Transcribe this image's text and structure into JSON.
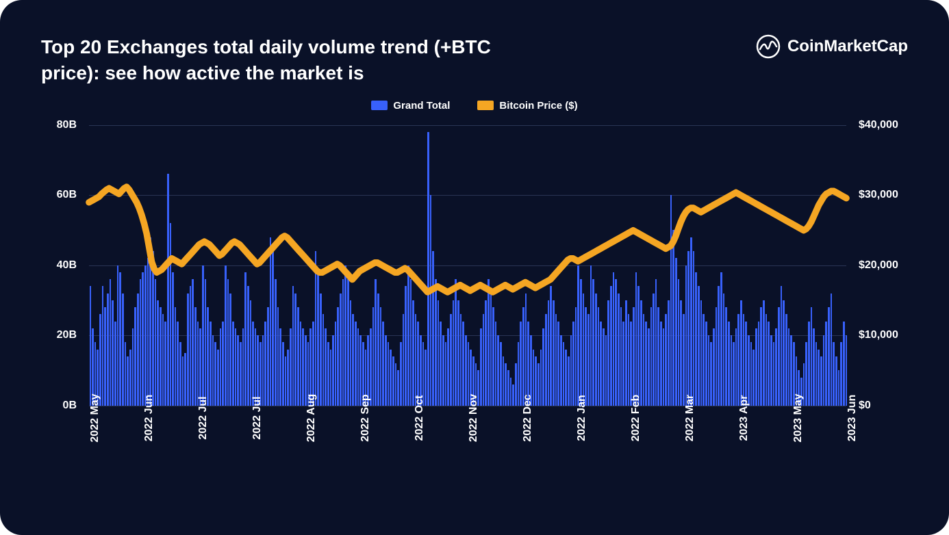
{
  "title": "Top 20 Exchanges total daily volume trend (+BTC price): see how active the market is",
  "brand": "CoinMarketCap",
  "legend": {
    "bar_label": "Grand Total",
    "line_label": "Bitcoin Price ($)"
  },
  "chart": {
    "type": "combo-bar-line",
    "background_color": "#0a1128",
    "grid_color": "#2a3555",
    "text_color": "#ffffff",
    "bar_color": "#3861fb",
    "line_color": "#f5a623",
    "line_width": 4,
    "y_left": {
      "min": 0,
      "max": 80,
      "ticks": [
        0,
        20,
        40,
        60,
        80
      ],
      "labels": [
        "0B",
        "20B",
        "40B",
        "60B",
        "80B"
      ]
    },
    "y_right": {
      "min": 0,
      "max": 40000,
      "ticks": [
        0,
        10000,
        20000,
        30000,
        40000
      ],
      "labels": [
        "$0",
        "$10,000",
        "$20,000",
        "$30,000",
        "$40,000"
      ]
    },
    "x_labels": [
      "2022 May",
      "2022 Jun",
      "2022 Jul",
      "2022 Jul",
      "2022 Aug",
      "2022 Sep",
      "2022 Oct",
      "2022 Nov",
      "2022 Dec",
      "2022 Jan",
      "2022 Feb",
      "2022 Mar",
      "2023 Apr",
      "2023 May",
      "2023 Jun"
    ],
    "x_positions_pct": [
      0,
      7.14,
      14.28,
      21.42,
      28.56,
      35.7,
      42.84,
      50,
      57.14,
      64.28,
      71.42,
      78.56,
      85.7,
      92.84,
      100
    ],
    "bars_values": [
      34,
      22,
      18,
      16,
      26,
      34,
      28,
      32,
      36,
      30,
      24,
      40,
      38,
      32,
      18,
      14,
      16,
      22,
      28,
      32,
      36,
      38,
      40,
      42,
      48,
      44,
      36,
      30,
      28,
      26,
      24,
      66,
      52,
      38,
      28,
      24,
      18,
      14,
      15,
      32,
      34,
      36,
      28,
      24,
      22,
      40,
      36,
      28,
      24,
      20,
      18,
      16,
      22,
      24,
      40,
      36,
      32,
      24,
      22,
      20,
      18,
      22,
      38,
      34,
      30,
      24,
      22,
      20,
      18,
      20,
      24,
      28,
      48,
      44,
      36,
      28,
      22,
      18,
      14,
      16,
      22,
      34,
      32,
      28,
      24,
      22,
      20,
      18,
      22,
      24,
      44,
      38,
      32,
      26,
      22,
      18,
      16,
      20,
      24,
      28,
      32,
      36,
      40,
      36,
      30,
      26,
      24,
      22,
      20,
      18,
      16,
      20,
      22,
      28,
      36,
      32,
      28,
      24,
      20,
      18,
      16,
      14,
      12,
      10,
      18,
      26,
      34,
      40,
      36,
      30,
      26,
      24,
      20,
      18,
      16,
      78,
      60,
      44,
      36,
      30,
      24,
      20,
      18,
      22,
      26,
      30,
      36,
      30,
      26,
      24,
      20,
      18,
      16,
      14,
      12,
      10,
      22,
      26,
      30,
      36,
      32,
      28,
      24,
      20,
      18,
      14,
      12,
      10,
      8,
      6,
      12,
      18,
      24,
      28,
      32,
      24,
      20,
      16,
      14,
      12,
      16,
      22,
      26,
      30,
      34,
      30,
      26,
      24,
      20,
      18,
      16,
      14,
      20,
      24,
      28,
      40,
      36,
      32,
      28,
      26,
      40,
      36,
      32,
      28,
      24,
      22,
      20,
      30,
      34,
      38,
      36,
      32,
      28,
      24,
      30,
      26,
      24,
      28,
      38,
      34,
      30,
      26,
      24,
      22,
      28,
      32,
      36,
      28,
      24,
      22,
      26,
      30,
      60,
      50,
      42,
      36,
      30,
      26,
      40,
      44,
      48,
      44,
      38,
      34,
      30,
      26,
      24,
      20,
      18,
      22,
      28,
      34,
      38,
      32,
      28,
      24,
      20,
      18,
      22,
      26,
      30,
      26,
      24,
      20,
      18,
      16,
      22,
      24,
      28,
      30,
      26,
      24,
      20,
      18,
      22,
      28,
      34,
      30,
      26,
      22,
      20,
      18,
      14,
      10,
      8,
      12,
      18,
      24,
      28,
      22,
      18,
      16,
      14,
      20,
      24,
      28,
      32,
      18,
      14,
      10,
      18,
      24,
      20
    ],
    "line_values": [
      29000,
      29200,
      29400,
      29600,
      29800,
      30200,
      30500,
      30800,
      31000,
      30800,
      30600,
      30400,
      30200,
      30600,
      31000,
      31200,
      30800,
      30200,
      29600,
      29000,
      28200,
      27200,
      26000,
      24500,
      22500,
      20500,
      19500,
      19000,
      19200,
      19400,
      19800,
      20200,
      20600,
      21000,
      20800,
      20600,
      20400,
      20200,
      20600,
      21000,
      21400,
      21800,
      22200,
      22600,
      23000,
      23200,
      23400,
      23200,
      23000,
      22600,
      22200,
      21800,
      21400,
      21600,
      22000,
      22400,
      22800,
      23200,
      23400,
      23200,
      23000,
      22600,
      22200,
      21800,
      21400,
      21000,
      20600,
      20200,
      20400,
      20800,
      21200,
      21600,
      22000,
      22400,
      22800,
      23200,
      23600,
      24000,
      24200,
      24000,
      23600,
      23200,
      22800,
      22400,
      22000,
      21600,
      21200,
      20800,
      20400,
      20000,
      19600,
      19200,
      19000,
      19000,
      19200,
      19400,
      19600,
      19800,
      20000,
      20200,
      20000,
      19600,
      19200,
      18800,
      18400,
      18000,
      18400,
      18800,
      19200,
      19400,
      19600,
      19800,
      20000,
      20200,
      20400,
      20400,
      20200,
      20000,
      19800,
      19600,
      19400,
      19200,
      19000,
      19000,
      19200,
      19400,
      19600,
      19400,
      19000,
      18600,
      18200,
      17800,
      17400,
      17000,
      16600,
      16200,
      16400,
      16600,
      16800,
      17000,
      16800,
      16600,
      16400,
      16200,
      16400,
      16600,
      16800,
      17000,
      17200,
      17000,
      16800,
      16600,
      16400,
      16600,
      16800,
      17000,
      17200,
      17000,
      16800,
      16600,
      16400,
      16200,
      16400,
      16600,
      16800,
      17000,
      17200,
      17000,
      16800,
      16600,
      16800,
      17000,
      17200,
      17400,
      17600,
      17400,
      17200,
      17000,
      16800,
      17000,
      17200,
      17400,
      17600,
      17800,
      18000,
      18400,
      18800,
      19200,
      19600,
      20000,
      20400,
      20800,
      21000,
      21000,
      20800,
      20600,
      20800,
      21000,
      21200,
      21400,
      21600,
      21800,
      22000,
      22200,
      22400,
      22600,
      22800,
      23000,
      23200,
      23400,
      23600,
      23800,
      24000,
      24200,
      24400,
      24600,
      24800,
      25000,
      24800,
      24600,
      24400,
      24200,
      24000,
      23800,
      23600,
      23400,
      23200,
      23000,
      22800,
      22600,
      22400,
      22600,
      22800,
      23400,
      24200,
      25200,
      26200,
      27000,
      27600,
      28000,
      28200,
      28200,
      28000,
      27800,
      27600,
      27800,
      28000,
      28200,
      28400,
      28600,
      28800,
      29000,
      29200,
      29400,
      29600,
      29800,
      30000,
      30200,
      30400,
      30200,
      30000,
      29800,
      29600,
      29400,
      29200,
      29000,
      28800,
      28600,
      28400,
      28200,
      28000,
      27800,
      27600,
      27400,
      27200,
      27000,
      26800,
      26600,
      26400,
      26200,
      26000,
      25800,
      25600,
      25400,
      25200,
      25000,
      25200,
      25600,
      26200,
      27000,
      27800,
      28600,
      29200,
      29800,
      30200,
      30400,
      30600,
      30600,
      30400,
      30200,
      30000,
      29800,
      29600
    ]
  }
}
